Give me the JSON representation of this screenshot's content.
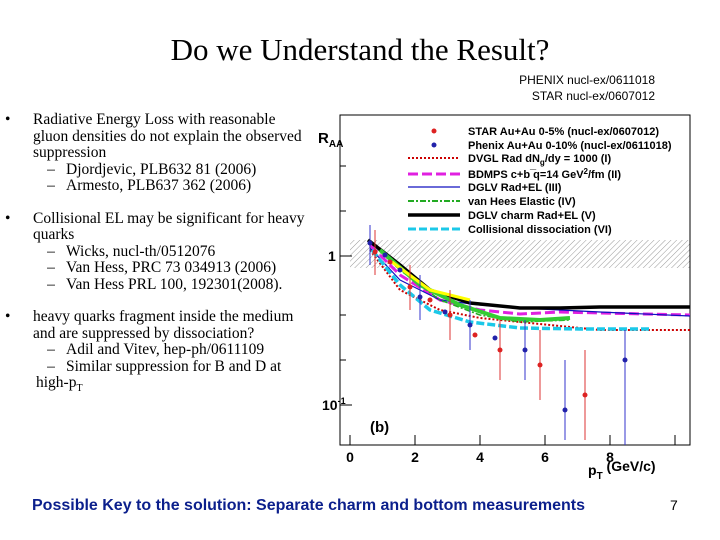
{
  "header": {
    "title": "Do we Understand the Result?",
    "references": [
      "PHENIX nucl-ex/0611018",
      "STAR nucl-ex/0607012"
    ]
  },
  "bullets": [
    {
      "text": "Radiative Energy Loss  with reasonable gluon densities do not explain the observed suppression",
      "subitems": [
        {
          "text": "Djordjevic, PLB632 81 (2006)"
        },
        {
          "text": "Armesto, PLB637 362 (2006)"
        }
      ]
    },
    {
      "text": "Collisional EL may be significant for heavy quarks",
      "subitems": [
        {
          "text": "Wicks, nucl-th/0512076"
        },
        {
          "text": "Van Hess, PRC 73 034913 (2006)"
        },
        {
          "text": "Van Hess PRL 100, 192301(2008)."
        }
      ]
    },
    {
      "text": "heavy quarks fragment inside the medium and are suppressed by dissociation?",
      "subitems": [
        {
          "text": "Adil and Vitev,  hep-ph/0611109"
        },
        {
          "text": "Similar suppression for B and D at high-p",
          "sub": "T"
        }
      ]
    }
  ],
  "figure": {
    "ylabel": {
      "text": "R",
      "sub": "AA"
    },
    "panel": "(b)",
    "xlabel": {
      "text": "p",
      "sub": "T",
      "rest": " (GeV/c)"
    },
    "xticks": [
      "0",
      "2",
      "4",
      "6",
      "8"
    ],
    "yticks": [
      {
        "text": "1"
      },
      {
        "text": "10",
        "exp": "-1"
      }
    ],
    "legend": [
      {
        "text": "STAR Au+Au 0-5% (nucl-ex/0607012)"
      },
      {
        "text": "Phenix Au+Au 0-10% (nucl-ex/0611018)"
      },
      {
        "text": "DVGL Rad dN",
        "sub": "g",
        "rest": "/dy = 1000 (I)"
      },
      {
        "text": "BDMPS c+b ̅q=14 GeV",
        "sup": "2",
        "rest": "/fm (II)"
      },
      {
        "text": "DGLV Rad+EL (III)"
      },
      {
        "text": "van Hees Elastic (IV)"
      },
      {
        "text": "DGLV charm Rad+EL (V)"
      },
      {
        "text": "Collisional dissociation (VI)"
      }
    ]
  },
  "footer": {
    "text": "Possible Key to the solution: Separate charm and bottom measurements",
    "page": "7"
  }
}
